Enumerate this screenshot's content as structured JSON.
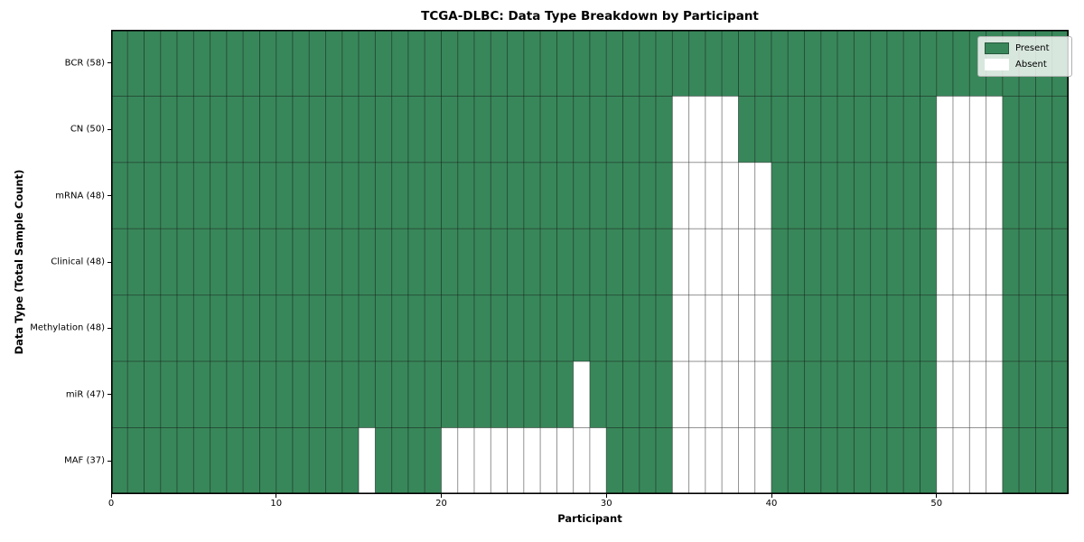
{
  "chart_data": {
    "type": "heatmap",
    "title": "TCGA-DLBC: Data Type Breakdown by Participant",
    "xlabel": "Participant",
    "ylabel": "Data Type (Total Sample Count)",
    "x_ticks": [
      0,
      10,
      20,
      30,
      40,
      50
    ],
    "n_participants": 58,
    "grid": "cell-borders",
    "colors": {
      "present": "#38875a",
      "absent": "#ffffff",
      "cell_edge": "rgba(0,0,0,0.35)",
      "frame": "#000000"
    },
    "rows": [
      {
        "label": "BCR (58)",
        "data_type": "BCR",
        "total_sample_count": 58,
        "absent_participants": []
      },
      {
        "label": "CN (50)",
        "data_type": "CN",
        "total_sample_count": 50,
        "absent_participants": [
          34,
          35,
          36,
          37,
          50,
          51,
          52,
          53
        ]
      },
      {
        "label": "mRNA (48)",
        "data_type": "mRNA",
        "total_sample_count": 48,
        "absent_participants": [
          34,
          35,
          36,
          37,
          38,
          39,
          50,
          51,
          52,
          53
        ]
      },
      {
        "label": "Clinical (48)",
        "data_type": "Clinical",
        "total_sample_count": 48,
        "absent_participants": [
          34,
          35,
          36,
          37,
          38,
          39,
          50,
          51,
          52,
          53
        ]
      },
      {
        "label": "Methylation (48)",
        "data_type": "Methylation",
        "total_sample_count": 48,
        "absent_participants": [
          34,
          35,
          36,
          37,
          38,
          39,
          50,
          51,
          52,
          53
        ]
      },
      {
        "label": "miR (47)",
        "data_type": "miR",
        "total_sample_count": 47,
        "absent_participants": [
          28,
          34,
          35,
          36,
          37,
          38,
          39,
          50,
          51,
          52,
          53
        ]
      },
      {
        "label": "MAF (37)",
        "data_type": "MAF",
        "total_sample_count": 37,
        "absent_participants": [
          15,
          20,
          21,
          22,
          23,
          24,
          25,
          26,
          27,
          28,
          29,
          34,
          35,
          36,
          37,
          38,
          39,
          50,
          51,
          52,
          53
        ]
      }
    ],
    "legend": {
      "position": "upper right",
      "entries": [
        {
          "label": "Present",
          "color": "#38875a",
          "edge": "rgba(0,0,0,0.35)"
        },
        {
          "label": "Absent",
          "color": "#ffffff",
          "edge": "rgba(255,255,255,1)"
        }
      ]
    }
  }
}
